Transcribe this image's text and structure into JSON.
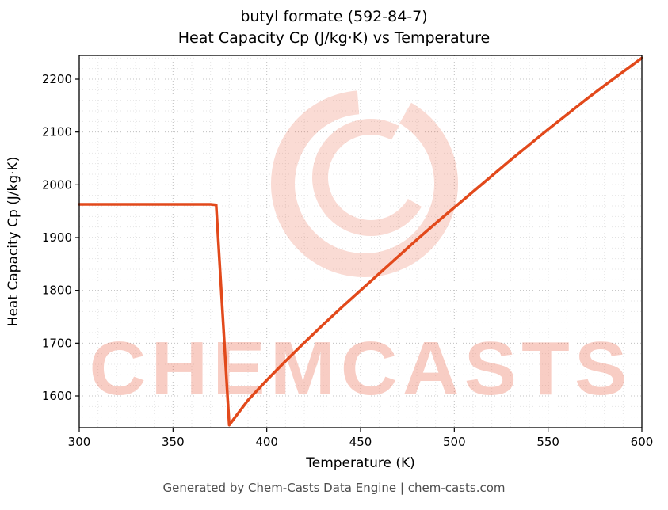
{
  "header": {
    "line1": "butyl formate (592-84-7)",
    "line2": "Heat Capacity Cp (J/kg·K) vs Temperature"
  },
  "footer": {
    "text": "Generated by Chem-Casts Data Engine | chem-casts.com"
  },
  "watermark": {
    "text": "CHEMCASTS",
    "text_color": "rgba(232,90,58,0.30)",
    "logo_color": "rgba(232,90,58,0.22)"
  },
  "chart_data": {
    "type": "line",
    "title": "butyl formate (592-84-7) Heat Capacity Cp (J/kg·K) vs Temperature",
    "xlabel": "Temperature (K)",
    "ylabel": "Heat Capacity Cp (J/kg·K)",
    "xlim": [
      300,
      600
    ],
    "ylim": [
      1540,
      2245
    ],
    "xticks": [
      300,
      350,
      400,
      450,
      500,
      550,
      600
    ],
    "yticks": [
      1600,
      1700,
      1800,
      1900,
      2000,
      2100,
      2200
    ],
    "x_minor_step": 10,
    "y_minor_step": 20,
    "grid": true,
    "legend": "none",
    "line_color": "#e2491b",
    "series": [
      {
        "name": "Heat Capacity Cp",
        "points": [
          [
            300,
            1963
          ],
          [
            310,
            1963
          ],
          [
            320,
            1963
          ],
          [
            330,
            1963
          ],
          [
            340,
            1963
          ],
          [
            350,
            1963
          ],
          [
            360,
            1963
          ],
          [
            370,
            1963
          ],
          [
            373,
            1962
          ],
          [
            380,
            1545
          ],
          [
            390,
            1592
          ],
          [
            400,
            1630
          ],
          [
            410,
            1666
          ],
          [
            420,
            1701
          ],
          [
            430,
            1735
          ],
          [
            440,
            1768
          ],
          [
            450,
            1800
          ],
          [
            460,
            1832
          ],
          [
            470,
            1864
          ],
          [
            480,
            1896
          ],
          [
            490,
            1927
          ],
          [
            500,
            1957
          ],
          [
            510,
            1987
          ],
          [
            520,
            2017
          ],
          [
            530,
            2047
          ],
          [
            540,
            2076
          ],
          [
            550,
            2105
          ],
          [
            560,
            2133
          ],
          [
            570,
            2161
          ],
          [
            580,
            2188
          ],
          [
            590,
            2214
          ],
          [
            600,
            2240
          ]
        ]
      }
    ]
  }
}
